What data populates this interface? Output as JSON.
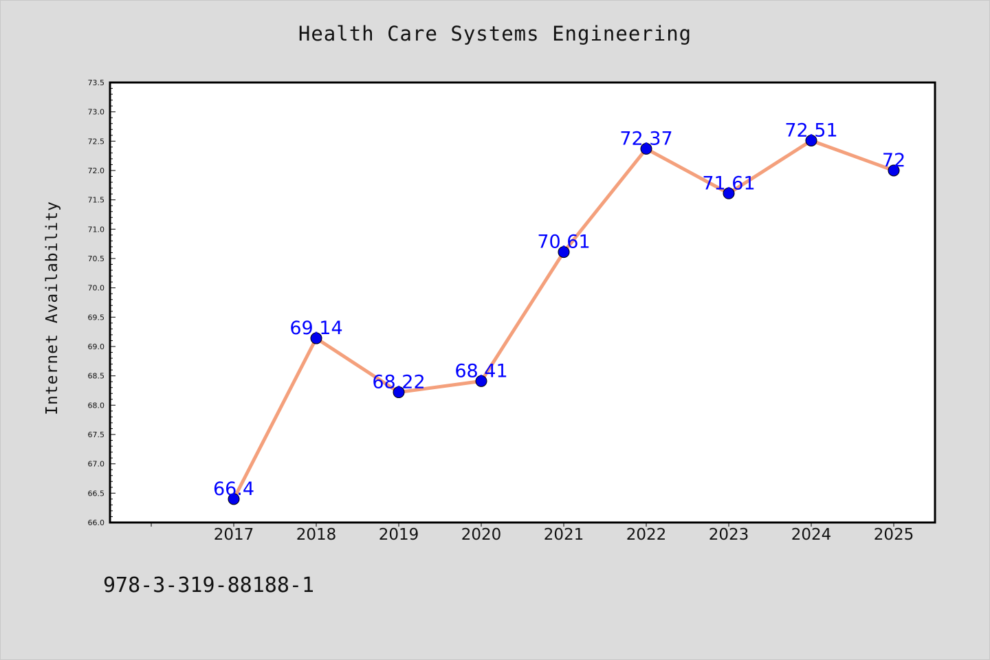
{
  "chart_data": {
    "type": "line",
    "title": "Health Care Systems Engineering",
    "ylabel": "Internet Availability",
    "xlabel": "",
    "categories": [
      "2017",
      "2018",
      "2019",
      "2020",
      "2021",
      "2022",
      "2023",
      "2024",
      "2025"
    ],
    "series": [
      {
        "values": [
          66.4,
          69.14,
          68.22,
          68.41,
          70.61,
          72.37,
          71.61,
          72.51,
          72
        ]
      }
    ],
    "data_labels": [
      "66.4",
      "69.14",
      "68.22",
      "68.41",
      "70.61",
      "72.37",
      "71.61",
      "72.51",
      "72"
    ],
    "ylim": [
      66.0,
      73.5
    ],
    "yticks": [
      "66.0",
      "66.5",
      "67.0",
      "67.5",
      "68.0",
      "68.5",
      "69.0",
      "69.5",
      "70.0",
      "70.5",
      "71.0",
      "71.5",
      "72.0",
      "72.5",
      "73.0",
      "73.5"
    ],
    "grid": false,
    "colors": {
      "line": "#f4a07c",
      "marker": "#0000ee",
      "data_label": "#0000ff",
      "plot_bg": "#ffffff",
      "page_bg": "#dcdcdc"
    }
  },
  "footer": {
    "text": "978-3-319-88188-1"
  }
}
